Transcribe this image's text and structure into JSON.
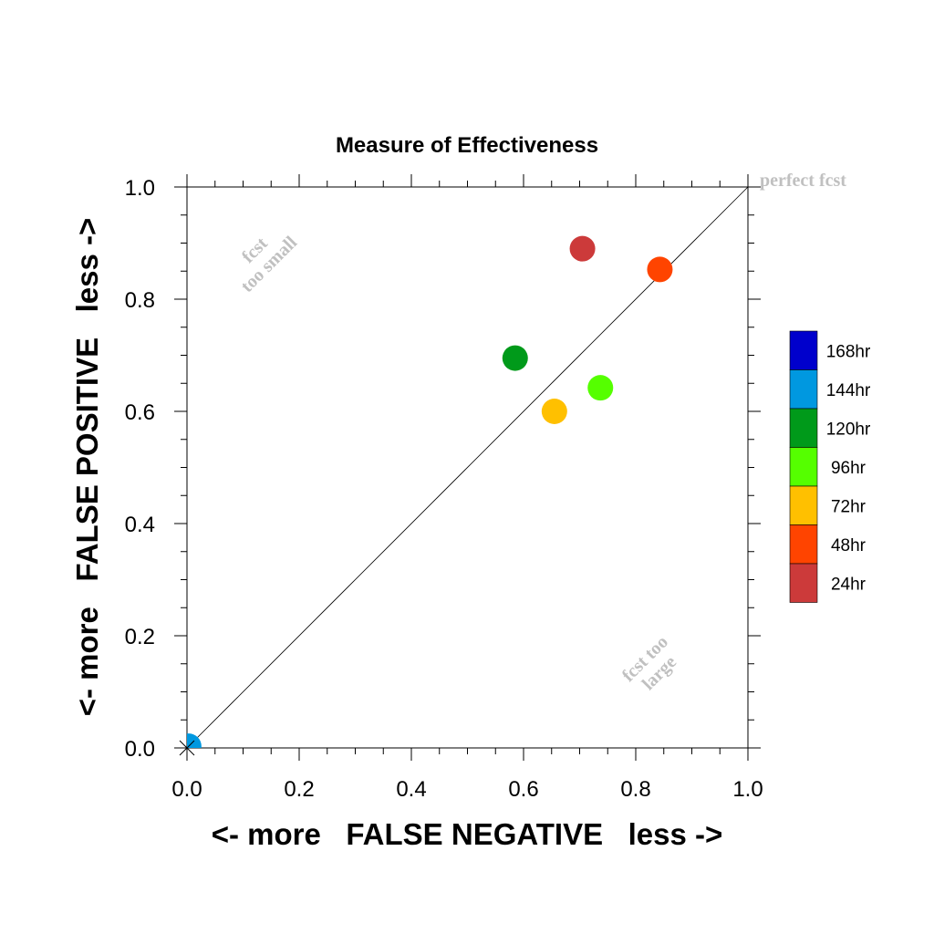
{
  "chart_data": {
    "type": "scatter",
    "title": "Measure of Effectiveness",
    "xlabel": "<- more   FALSE NEGATIVE   less ->",
    "ylabel": "<- more   FALSE POSITIVE   less ->",
    "xlim": [
      0.0,
      1.0
    ],
    "ylim": [
      0.0,
      1.0
    ],
    "xticks": [
      "0.0",
      "0.2",
      "0.4",
      "0.6",
      "0.8",
      "1.0"
    ],
    "yticks": [
      "0.0",
      "0.2",
      "0.4",
      "0.6",
      "0.8",
      "1.0"
    ],
    "grid": false,
    "legend_position": "right",
    "reference_line": "diagonal",
    "annotations": {
      "perfect": "perfect fcst",
      "small_line1": "fcst",
      "small_line2": "too small",
      "large_line1": "fcst too",
      "large_line2": "large"
    },
    "series": [
      {
        "name": "24hr",
        "color": "#cc3a3a",
        "x": 0.705,
        "y": 0.89
      },
      {
        "name": "48hr",
        "color": "#ff4400",
        "x": 0.843,
        "y": 0.853
      },
      {
        "name": "72hr",
        "color": "#ffc000",
        "x": 0.655,
        "y": 0.6
      },
      {
        "name": "96hr",
        "color": "#55ff00",
        "x": 0.737,
        "y": 0.642
      },
      {
        "name": "120hr",
        "color": "#009a1a",
        "x": 0.585,
        "y": 0.695
      },
      {
        "name": "144hr",
        "color": "#0098e0",
        "x": 0.003,
        "y": 0.003
      },
      {
        "name": "168hr",
        "color": "#0000cc",
        "x": null,
        "y": null
      }
    ],
    "legend_order": [
      "168hr",
      "144hr",
      "120hr",
      "96hr",
      "72hr",
      "48hr",
      "24hr"
    ]
  }
}
